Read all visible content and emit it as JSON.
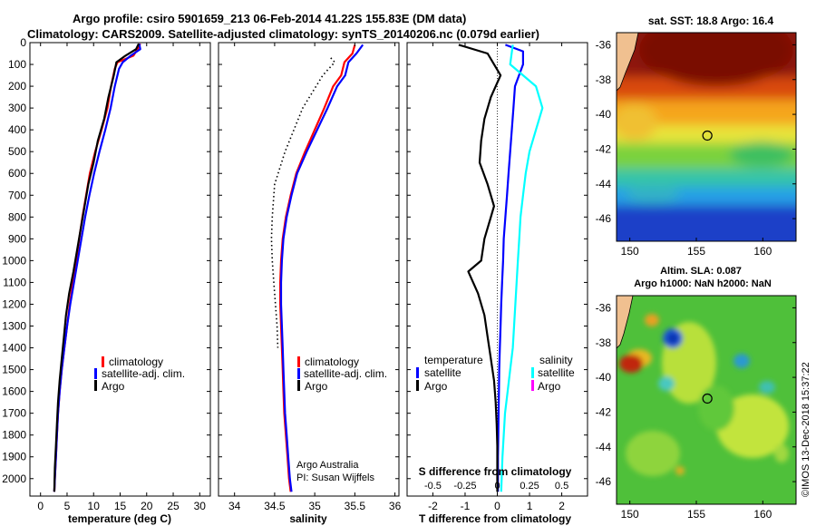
{
  "header": {
    "line1": "Argo profile: csiro 5901659_213 06-Feb-2014 41.22S 155.83E (DM data)",
    "line2": "Climatology: CARS2009. Satellite-adjusted climatology: synTS_20140206.nc (0.079d earlier)"
  },
  "colors": {
    "climatology": "#ff0000",
    "satellite": "#0000ff",
    "argo": "#000000",
    "satellite_s": "#00ffff",
    "argo_s": "#ff00ff"
  },
  "chart_data": [
    {
      "type": "line",
      "id": "temperature",
      "xlabel": "temperature (deg C)",
      "ylabel": "",
      "xlim": [
        -2,
        32
      ],
      "ylim": [
        2080,
        0
      ],
      "x_ticks": [
        0,
        5,
        10,
        15,
        20,
        25,
        30
      ],
      "y_ticks": [
        0,
        100,
        200,
        300,
        400,
        500,
        600,
        700,
        800,
        900,
        1000,
        1100,
        1200,
        1300,
        1400,
        1500,
        1600,
        1700,
        1800,
        1900,
        2000
      ],
      "y_tick_labels": [
        "0",
        "100",
        "200",
        "300",
        "400",
        "500",
        "600",
        "700",
        "800",
        "900",
        "1000",
        "1100",
        "1200",
        "1300",
        "1400",
        "1500",
        "1600",
        "1700",
        "1800",
        "1900",
        "2000"
      ],
      "legend": {
        "placement": "lower-center",
        "items": [
          "climatology",
          "satellite-adj. clim.",
          "Argo"
        ]
      },
      "series": [
        {
          "name": "climatology",
          "color": "#ff0000",
          "x": [
            18.8,
            18.3,
            17.5,
            14.5,
            14.0,
            13.3,
            12.6,
            11.5,
            10.3,
            9.3,
            8.6,
            7.9,
            7.3,
            6.7,
            6.1,
            5.5,
            5.0,
            4.5,
            4.0,
            3.6,
            3.3,
            3.1,
            2.9,
            2.7,
            2.6
          ],
          "y": [
            5,
            30,
            60,
            90,
            120,
            200,
            300,
            400,
            500,
            600,
            700,
            800,
            900,
            1000,
            1100,
            1200,
            1300,
            1400,
            1500,
            1600,
            1700,
            1800,
            1900,
            2000,
            2060
          ]
        },
        {
          "name": "satellite-adj. clim.",
          "color": "#0000ff",
          "x": [
            18.6,
            18.8,
            17.0,
            15.5,
            14.8,
            14.0,
            13.2,
            12.2,
            11.1,
            10.1,
            9.2,
            8.4,
            7.7,
            7.0,
            6.3,
            5.6,
            5.0,
            4.5,
            4.0,
            3.6,
            3.3,
            3.1,
            2.9,
            2.7,
            2.6
          ],
          "y": [
            5,
            30,
            60,
            90,
            120,
            200,
            300,
            400,
            500,
            600,
            700,
            800,
            900,
            1000,
            1100,
            1200,
            1300,
            1400,
            1500,
            1600,
            1700,
            1800,
            1900,
            2000,
            2060
          ]
        },
        {
          "name": "Argo",
          "color": "#000000",
          "x": [
            18.5,
            18.0,
            16.0,
            14.3,
            13.8,
            12.8,
            12.0,
            10.8,
            10.0,
            9.0,
            8.3,
            7.6,
            6.9,
            6.2,
            5.4,
            4.8,
            4.4,
            4.0,
            3.6,
            3.3,
            3.1,
            2.9,
            2.7,
            2.6
          ],
          "y": [
            5,
            30,
            60,
            90,
            150,
            250,
            350,
            450,
            550,
            650,
            750,
            850,
            950,
            1050,
            1150,
            1250,
            1350,
            1450,
            1550,
            1650,
            1750,
            1850,
            1950,
            2060
          ]
        }
      ]
    },
    {
      "type": "line",
      "id": "salinity",
      "xlabel": "salinity",
      "ylabel": "",
      "xlim": [
        33.8,
        36.05
      ],
      "ylim": [
        2080,
        0
      ],
      "x_ticks": [
        34,
        34.5,
        35,
        35.5,
        36
      ],
      "x_tick_labels": [
        "34",
        "34.5",
        "35",
        "35.5",
        "36"
      ],
      "legend": {
        "placement": "lower-center",
        "items": [
          "climatology",
          "satellite-adj. clim.",
          "Argo"
        ]
      },
      "annotation": [
        "Argo Australia",
        "PI: Susan Wijffels"
      ],
      "series": [
        {
          "name": "climatology",
          "color": "#ff0000",
          "x": [
            35.5,
            35.47,
            35.37,
            35.33,
            35.23,
            35.12,
            35.0,
            34.88,
            34.77,
            34.7,
            34.64,
            34.6,
            34.58,
            34.57,
            34.57,
            34.58,
            34.59,
            34.6,
            34.61,
            34.62,
            34.64,
            34.66,
            34.68,
            34.69,
            34.7
          ],
          "y": [
            10,
            50,
            90,
            150,
            200,
            300,
            400,
            500,
            600,
            700,
            800,
            900,
            1000,
            1100,
            1200,
            1300,
            1400,
            1500,
            1600,
            1700,
            1800,
            1900,
            2000,
            2030,
            2060
          ]
        },
        {
          "name": "satellite-adj. clim.",
          "color": "#0000ff",
          "x": [
            35.6,
            35.52,
            35.42,
            35.38,
            35.28,
            35.16,
            35.03,
            34.9,
            34.78,
            34.71,
            34.65,
            34.61,
            34.59,
            34.58,
            34.58,
            34.59,
            34.6,
            34.61,
            34.62,
            34.63,
            34.65,
            34.67,
            34.69,
            34.7,
            34.71
          ],
          "y": [
            10,
            50,
            90,
            150,
            200,
            300,
            400,
            500,
            600,
            700,
            800,
            900,
            1000,
            1100,
            1200,
            1300,
            1400,
            1500,
            1600,
            1700,
            1800,
            1900,
            2000,
            2030,
            2060
          ]
        },
        {
          "name": "Argo",
          "color": "#000000",
          "style": "dotted",
          "x": [
            35.2,
            35.25,
            35.1,
            34.85,
            34.63,
            34.5,
            34.47,
            34.46,
            34.47,
            34.49,
            34.51,
            34.53,
            34.54
          ],
          "y": [
            70,
            90,
            150,
            300,
            500,
            650,
            800,
            900,
            1000,
            1100,
            1200,
            1300,
            1400
          ]
        }
      ]
    },
    {
      "type": "line",
      "id": "difference",
      "xlabel": "T difference from climatology",
      "top_xlabel": "S difference from climatology",
      "xlim": [
        -2.8,
        2.8
      ],
      "ylim": [
        2080,
        0
      ],
      "x_ticks": [
        -2,
        -1,
        0,
        1,
        2
      ],
      "s_ticks": [
        -0.5,
        -0.25,
        0,
        0.25,
        0.5
      ],
      "s_tick_labels": [
        "-0.5",
        "-0.25",
        "0",
        "0.25",
        "0.5"
      ],
      "s_scale": 4,
      "legend": {
        "placement": "lower-center",
        "left_title": "temperature",
        "right_title": "salinity",
        "left_items": [
          "satellite",
          "Argo"
        ],
        "right_items": [
          "satellite",
          "Argo"
        ]
      },
      "series": [
        {
          "name": "satellite",
          "color": "#0000ff",
          "x": [
            0.25,
            0.8,
            0.8,
            0.55,
            0.5,
            0.45,
            0.4,
            0.35,
            0.3,
            0.25,
            0.2,
            0.18,
            0.15,
            0.12,
            0.1,
            0.08,
            0.06,
            0.05,
            0.04,
            0.03,
            0.02,
            0.02,
            0.02
          ],
          "y": [
            10,
            40,
            100,
            200,
            300,
            400,
            500,
            600,
            700,
            800,
            900,
            1000,
            1100,
            1200,
            1300,
            1400,
            1500,
            1600,
            1700,
            1800,
            1900,
            2000,
            2060
          ]
        },
        {
          "name": "Argo",
          "color": "#000000",
          "x": [
            -1.2,
            -0.3,
            0.1,
            -0.2,
            -0.4,
            -0.5,
            -0.55,
            -0.3,
            -0.1,
            -0.2,
            -0.4,
            -0.5,
            -0.9,
            -0.6,
            -0.4,
            -0.3,
            -0.2,
            -0.1,
            -0.05,
            -0.02,
            0.0,
            0.0,
            0.0
          ],
          "y": [
            10,
            50,
            150,
            250,
            350,
            450,
            550,
            650,
            750,
            800,
            900,
            1000,
            1050,
            1150,
            1250,
            1350,
            1450,
            1550,
            1650,
            1750,
            1850,
            1950,
            2060
          ]
        },
        {
          "name": "salinity satellite",
          "color": "#00ffff",
          "x": [
            0.12,
            0.1,
            0.3,
            0.35,
            0.3,
            0.25,
            0.22,
            0.2,
            0.18,
            0.17,
            0.16,
            0.15,
            0.14,
            0.13,
            0.12,
            0.1,
            0.08,
            0.06,
            0.05,
            0.04,
            0.03
          ],
          "y": [
            10,
            100,
            200,
            300,
            400,
            500,
            600,
            700,
            800,
            900,
            1000,
            1100,
            1200,
            1300,
            1400,
            1500,
            1600,
            1700,
            1800,
            1900,
            2060
          ]
        },
        {
          "name": "salinity Argo",
          "color": "#ff00ff",
          "x": [],
          "y": []
        }
      ]
    }
  ],
  "sst_map": {
    "title": "sat. SST: 18.8 Argo: 16.4",
    "lon_ticks": [
      "150",
      "155",
      "160"
    ],
    "lat_ticks": [
      "-36",
      "-38",
      "-40",
      "-42",
      "-44",
      "-46"
    ],
    "argo_position": {
      "lon": 155.83,
      "lat": -41.22
    }
  },
  "sla_map": {
    "title1": "Altim. SLA: 0.087",
    "title2": "Argo h1000: NaN h2000: NaN",
    "lon_ticks": [
      "150",
      "155",
      "160"
    ],
    "lat_ticks": [
      "-36",
      "-38",
      "-40",
      "-42",
      "-44",
      "-46"
    ],
    "argo_position": {
      "lon": 155.83,
      "lat": -41.22
    }
  },
  "footer": {
    "credit": "©IMOS 13-Dec-2018 15:37:22"
  }
}
